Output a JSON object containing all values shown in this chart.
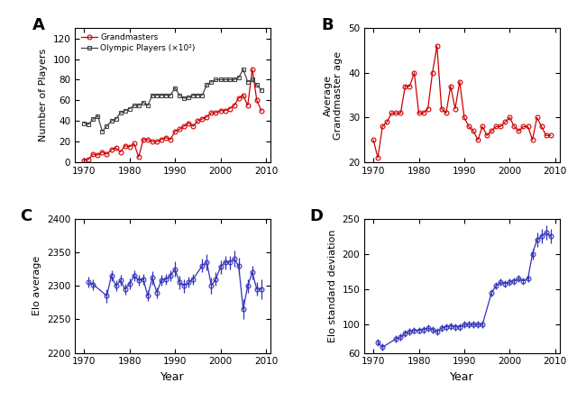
{
  "panel_A": {
    "grandmasters_x": [
      1970,
      1971,
      1972,
      1973,
      1974,
      1975,
      1976,
      1977,
      1978,
      1979,
      1980,
      1981,
      1982,
      1983,
      1984,
      1985,
      1986,
      1987,
      1988,
      1989,
      1990,
      1991,
      1992,
      1993,
      1994,
      1995,
      1996,
      1997,
      1998,
      1999,
      2000,
      2001,
      2002,
      2003,
      2004,
      2005,
      2006,
      2007,
      2008,
      2009
    ],
    "grandmasters_y": [
      2,
      3,
      8,
      7,
      10,
      8,
      12,
      14,
      10,
      16,
      15,
      18,
      5,
      22,
      22,
      20,
      20,
      22,
      24,
      22,
      30,
      32,
      35,
      38,
      35,
      40,
      42,
      44,
      48,
      48,
      50,
      50,
      52,
      55,
      62,
      65,
      55,
      90,
      60,
      50
    ],
    "olympic_x": [
      1970,
      1971,
      1972,
      1973,
      1974,
      1975,
      1976,
      1977,
      1978,
      1979,
      1980,
      1981,
      1982,
      1983,
      1984,
      1985,
      1986,
      1987,
      1988,
      1989,
      1990,
      1991,
      1992,
      1993,
      1994,
      1995,
      1996,
      1997,
      1998,
      1999,
      2000,
      2001,
      2002,
      2003,
      2004,
      2005,
      2006,
      2007,
      2008,
      2009
    ],
    "olympic_y": [
      38,
      37,
      42,
      45,
      30,
      35,
      40,
      42,
      48,
      50,
      52,
      55,
      55,
      58,
      55,
      65,
      65,
      65,
      65,
      65,
      72,
      65,
      62,
      63,
      65,
      65,
      65,
      75,
      78,
      80,
      80,
      80,
      80,
      80,
      82,
      90,
      78,
      80,
      75,
      70
    ],
    "ylabel": "Number of Players",
    "ylim": [
      0,
      130
    ],
    "yticks": [
      0,
      20,
      40,
      60,
      80,
      100,
      120
    ],
    "xlim": [
      1968,
      2011
    ],
    "xticks": [
      1970,
      1980,
      1990,
      2000,
      2010
    ],
    "label_A": "A",
    "gm_label": "Grandmasters",
    "op_label": "Olympic Players (×10²)"
  },
  "panel_B": {
    "x": [
      1970,
      1971,
      1972,
      1973,
      1974,
      1975,
      1976,
      1977,
      1978,
      1979,
      1980,
      1981,
      1982,
      1983,
      1984,
      1985,
      1986,
      1987,
      1988,
      1989,
      1990,
      1991,
      1992,
      1993,
      1994,
      1995,
      1996,
      1997,
      1998,
      1999,
      2000,
      2001,
      2002,
      2003,
      2004,
      2005,
      2006,
      2007,
      2008,
      2009
    ],
    "y": [
      25,
      21,
      28,
      29,
      31,
      31,
      31,
      37,
      37,
      40,
      31,
      31,
      32,
      40,
      46,
      32,
      31,
      37,
      32,
      38,
      30,
      28,
      27,
      25,
      28,
      26,
      27,
      28,
      28,
      29,
      30,
      28,
      27,
      28,
      28,
      25,
      30,
      28,
      26,
      26
    ],
    "ylabel": "Average\nGrandmaster age",
    "ylim": [
      20,
      50
    ],
    "yticks": [
      20,
      30,
      40,
      50
    ],
    "xlim": [
      1968,
      2011
    ],
    "xticks": [
      1970,
      1980,
      1990,
      2000,
      2010
    ],
    "label_B": "B"
  },
  "panel_C": {
    "x": [
      1971,
      1972,
      1975,
      1976,
      1977,
      1978,
      1979,
      1980,
      1981,
      1982,
      1983,
      1984,
      1985,
      1986,
      1987,
      1988,
      1989,
      1990,
      1991,
      1992,
      1993,
      1994,
      1996,
      1997,
      1998,
      1999,
      2000,
      2001,
      2002,
      2003,
      2004,
      2005,
      2006,
      2007,
      2008,
      2009
    ],
    "y": [
      2305,
      2302,
      2285,
      2315,
      2300,
      2308,
      2295,
      2303,
      2315,
      2308,
      2310,
      2285,
      2312,
      2290,
      2308,
      2310,
      2315,
      2325,
      2305,
      2300,
      2305,
      2310,
      2330,
      2335,
      2300,
      2310,
      2328,
      2335,
      2335,
      2340,
      2330,
      2265,
      2300,
      2320,
      2295,
      2295
    ],
    "yerr": [
      8,
      8,
      10,
      8,
      8,
      8,
      8,
      8,
      8,
      8,
      8,
      8,
      10,
      8,
      8,
      8,
      8,
      12,
      10,
      10,
      8,
      8,
      10,
      12,
      12,
      10,
      10,
      10,
      10,
      12,
      12,
      15,
      10,
      10,
      10,
      15
    ],
    "ylabel": "Elo average",
    "ylim": [
      2200,
      2400
    ],
    "yticks": [
      2200,
      2250,
      2300,
      2350,
      2400
    ],
    "xlim": [
      1968,
      2011
    ],
    "xticks": [
      1970,
      1980,
      1990,
      2000,
      2010
    ],
    "xlabel": "Year",
    "label_C": "C"
  },
  "panel_D": {
    "x": [
      1971,
      1972,
      1975,
      1976,
      1977,
      1978,
      1979,
      1980,
      1981,
      1982,
      1983,
      1984,
      1985,
      1986,
      1987,
      1988,
      1989,
      1990,
      1991,
      1992,
      1993,
      1994,
      1996,
      1997,
      1998,
      1999,
      2000,
      2001,
      2002,
      2003,
      2004,
      2005,
      2006,
      2007,
      2008,
      2009
    ],
    "y": [
      75,
      68,
      80,
      82,
      88,
      90,
      92,
      92,
      93,
      95,
      93,
      90,
      95,
      97,
      98,
      97,
      97,
      100,
      100,
      100,
      100,
      100,
      145,
      155,
      160,
      158,
      160,
      162,
      165,
      162,
      165,
      200,
      220,
      225,
      230,
      225
    ],
    "yerr": [
      5,
      5,
      5,
      5,
      5,
      5,
      5,
      5,
      5,
      5,
      5,
      5,
      5,
      5,
      5,
      5,
      5,
      5,
      5,
      5,
      5,
      5,
      5,
      5,
      5,
      5,
      5,
      5,
      5,
      5,
      5,
      8,
      10,
      10,
      10,
      10
    ],
    "ylabel": "Elo standard deviation",
    "ylim": [
      60,
      250
    ],
    "yticks": [
      60,
      100,
      150,
      200,
      250
    ],
    "xlim": [
      1968,
      2011
    ],
    "xticks": [
      1970,
      1980,
      1990,
      2000,
      2010
    ],
    "xlabel": "Year",
    "label_D": "D"
  },
  "red_color": "#cc0000",
  "blue_color": "#3333bb",
  "gray_color": "#444444"
}
